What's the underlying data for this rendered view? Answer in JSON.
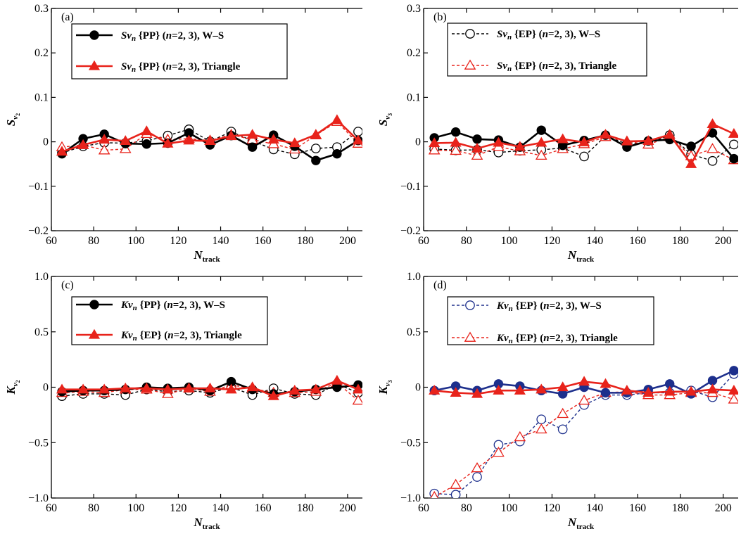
{
  "chart_data": [
    {
      "type": "line",
      "panel_label": "(a)",
      "ylabel": "S",
      "ylabel_sub": "v",
      "ylabel_subsub": "2",
      "xlabel": "N",
      "xlabel_sub": "track",
      "xlim": [
        60,
        207
      ],
      "ylim": [
        -0.2,
        0.3
      ],
      "xticks": [
        60,
        80,
        100,
        120,
        140,
        160,
        180,
        200
      ],
      "yticks": [
        -0.2,
        -0.1,
        0,
        0.1,
        0.2,
        0.3
      ],
      "ytick_labels": [
        "−0.2",
        "−0.1",
        "0",
        "0.1",
        "0.2",
        "0.3"
      ],
      "legend": {
        "position": "top-left",
        "entries": [
          {
            "prefix": "Sv",
            "sub": "n",
            "mid": " {PP} (",
            "n": "n",
            "rest": "=2, 3), W–S"
          },
          {
            "prefix": "Sv",
            "sub": "n",
            "mid": " {PP} (",
            "n": "n",
            "rest": "=2, 3), Triangle"
          }
        ]
      },
      "series": [
        {
          "name": "Sv_n {PP} (n=2, 3), W–S",
          "style": "solid",
          "marker": "filled-circle",
          "color": "#000000",
          "x": [
            65,
            75,
            85,
            95,
            105,
            115,
            125,
            135,
            145,
            155,
            165,
            175,
            185,
            195,
            205
          ],
          "y": [
            -0.027,
            0.007,
            0.017,
            -0.004,
            -0.005,
            -0.003,
            0.02,
            -0.007,
            0.014,
            -0.012,
            0.015,
            -0.01,
            -0.042,
            -0.027,
            0.003
          ]
        },
        {
          "name": "Sv_n {PP} (n=2, 3), Triangle",
          "style": "solid",
          "marker": "filled-triangle",
          "color": "#e8231b",
          "x": [
            65,
            75,
            85,
            95,
            105,
            115,
            125,
            135,
            145,
            155,
            165,
            175,
            185,
            195,
            205
          ],
          "y": [
            -0.022,
            -0.007,
            0.005,
            0.002,
            0.024,
            -0.004,
            0.003,
            0.002,
            0.013,
            0.016,
            0.005,
            -0.003,
            0.016,
            0.049,
            0.003
          ]
        },
        {
          "name": "open-circle W–S",
          "style": "dashed",
          "marker": "open-circle",
          "color": "#000000",
          "x": [
            65,
            75,
            85,
            95,
            105,
            115,
            125,
            135,
            145,
            155,
            165,
            175,
            185,
            195,
            205
          ],
          "y": [
            -0.025,
            -0.01,
            -0.002,
            -0.003,
            0.002,
            0.014,
            0.028,
            0.001,
            0.023,
            0.002,
            -0.017,
            -0.028,
            -0.015,
            -0.012,
            0.023
          ]
        },
        {
          "name": "open-triangle Triangle",
          "style": "dashed",
          "marker": "open-triangle",
          "color": "#e8231b",
          "x": [
            65,
            75,
            85,
            95,
            105,
            115,
            125,
            135,
            145,
            155,
            165,
            175,
            185,
            195,
            205
          ],
          "y": [
            -0.012,
            -0.007,
            -0.019,
            -0.016,
            0.018,
            0.005,
            0.007,
            0.003,
            0.016,
            0.005,
            -0.005,
            -0.017,
            0.015,
            0.045,
            -0.004
          ]
        }
      ]
    },
    {
      "type": "line",
      "panel_label": "(b)",
      "ylabel": "S",
      "ylabel_sub": "v",
      "ylabel_subsub": "3",
      "xlabel": "N",
      "xlabel_sub": "track",
      "xlim": [
        60,
        207
      ],
      "ylim": [
        -0.2,
        0.3
      ],
      "xticks": [
        60,
        80,
        100,
        120,
        140,
        160,
        180,
        200
      ],
      "yticks": [
        -0.2,
        -0.1,
        0,
        0.1,
        0.2,
        0.3
      ],
      "ytick_labels": [
        "−0.2",
        "−0.1",
        "0",
        "0.1",
        "0.2",
        "0.3"
      ],
      "legend": {
        "position": "top-left",
        "entries": [
          {
            "prefix": "Sv",
            "sub": "n",
            "mid": " {EP} (",
            "n": "n",
            "rest": "=2, 3), W–S"
          },
          {
            "prefix": "Sv",
            "sub": "n",
            "mid": " {EP} (",
            "n": "n",
            "rest": "=2, 3), Triangle"
          }
        ]
      },
      "series": [
        {
          "name": "solid black",
          "style": "solid",
          "marker": "filled-circle",
          "color": "#000000",
          "x": [
            65,
            75,
            85,
            95,
            105,
            115,
            125,
            135,
            145,
            155,
            165,
            175,
            185,
            195,
            205
          ],
          "y": [
            0.009,
            0.022,
            0.006,
            0.004,
            -0.012,
            0.026,
            -0.008,
            0.003,
            0.015,
            -0.012,
            0.002,
            0.005,
            -0.01,
            0.02,
            -0.038
          ]
        },
        {
          "name": "solid red",
          "style": "solid",
          "marker": "filled-triangle",
          "color": "#e8231b",
          "x": [
            65,
            75,
            85,
            95,
            105,
            115,
            125,
            135,
            145,
            155,
            165,
            175,
            185,
            195,
            205
          ],
          "y": [
            -0.003,
            -0.002,
            -0.015,
            -0.002,
            -0.011,
            -0.002,
            0.006,
            -0.001,
            0.016,
            0.001,
            0.002,
            0.016,
            -0.05,
            0.04,
            0.018
          ]
        },
        {
          "name": "Sv_n {EP} (n=2, 3), W–S",
          "style": "dashed",
          "marker": "open-circle",
          "color": "#000000",
          "x": [
            65,
            75,
            85,
            95,
            105,
            115,
            125,
            135,
            145,
            155,
            165,
            175,
            185,
            195,
            205
          ],
          "y": [
            -0.016,
            -0.019,
            -0.018,
            -0.024,
            -0.02,
            -0.018,
            -0.014,
            -0.033,
            0.013,
            -0.005,
            -0.003,
            0.015,
            -0.028,
            -0.043,
            -0.006
          ]
        },
        {
          "name": "Sv_n {EP} (n=2, 3), Triangle",
          "style": "dashed",
          "marker": "open-triangle",
          "color": "#e8231b",
          "x": [
            65,
            75,
            85,
            95,
            105,
            115,
            125,
            135,
            145,
            155,
            165,
            175,
            185,
            195,
            205
          ],
          "y": [
            -0.019,
            -0.02,
            -0.031,
            -0.011,
            -0.021,
            -0.031,
            -0.016,
            -0.005,
            0.011,
            0.001,
            -0.006,
            0.011,
            -0.032,
            -0.016,
            -0.041
          ]
        }
      ]
    },
    {
      "type": "line",
      "panel_label": "(c)",
      "ylabel": "K",
      "ylabel_sub": "v",
      "ylabel_subsub": "2",
      "xlabel": "N",
      "xlabel_sub": "track",
      "xlim": [
        60,
        207
      ],
      "ylim": [
        -1.0,
        1.0
      ],
      "xticks": [
        60,
        80,
        100,
        120,
        140,
        160,
        180,
        200
      ],
      "yticks": [
        -1.0,
        -0.5,
        0,
        0.5,
        1.0
      ],
      "ytick_labels": [
        "−1.0",
        "−0.5",
        "0",
        "0.5",
        "1.0"
      ],
      "legend": {
        "position": "top-left",
        "entries": [
          {
            "prefix": "Kv",
            "sub": "n",
            "mid": " {PP} (",
            "n": "n",
            "rest": "=2, 3), W–S"
          },
          {
            "prefix": "Kv",
            "sub": "n",
            "mid": " {EP} (",
            "n": "n",
            "rest": "=2, 3), Triangle"
          }
        ]
      },
      "series": [
        {
          "name": "Kv_n {PP} (n=2, 3), W–S",
          "style": "solid",
          "marker": "filled-circle",
          "color": "#000000",
          "x": [
            65,
            75,
            85,
            95,
            105,
            115,
            125,
            135,
            145,
            155,
            165,
            175,
            185,
            195,
            205
          ],
          "y": [
            -0.04,
            -0.03,
            -0.03,
            -0.02,
            0.0,
            -0.01,
            0.0,
            -0.03,
            0.05,
            -0.02,
            -0.06,
            -0.04,
            -0.02,
            0.0,
            0.02
          ]
        },
        {
          "name": "Kv_n {EP} (n=2, 3), Triangle",
          "style": "solid",
          "marker": "filled-triangle",
          "color": "#e8231b",
          "x": [
            65,
            75,
            85,
            95,
            105,
            115,
            125,
            135,
            145,
            155,
            165,
            175,
            185,
            195,
            205
          ],
          "y": [
            -0.02,
            -0.02,
            -0.02,
            -0.01,
            -0.01,
            -0.02,
            -0.01,
            -0.01,
            -0.02,
            0.0,
            -0.08,
            -0.03,
            -0.02,
            0.06,
            -0.02
          ]
        },
        {
          "name": "open-circle",
          "style": "dashed",
          "marker": "open-circle",
          "color": "#000000",
          "x": [
            65,
            75,
            85,
            95,
            105,
            115,
            125,
            135,
            145,
            155,
            165,
            175,
            185,
            195,
            205
          ],
          "y": [
            -0.08,
            -0.06,
            -0.06,
            -0.07,
            -0.02,
            -0.04,
            -0.03,
            -0.05,
            0.0,
            -0.07,
            -0.01,
            -0.06,
            -0.07,
            0.03,
            -0.05
          ]
        },
        {
          "name": "open-triangle",
          "style": "dashed",
          "marker": "open-triangle",
          "color": "#e8231b",
          "x": [
            65,
            75,
            85,
            95,
            105,
            115,
            125,
            135,
            145,
            155,
            165,
            175,
            185,
            195,
            205
          ],
          "y": [
            -0.05,
            -0.04,
            -0.05,
            -0.02,
            -0.02,
            -0.06,
            -0.01,
            -0.04,
            0.02,
            -0.01,
            -0.05,
            -0.05,
            -0.04,
            0.04,
            -0.12
          ]
        }
      ]
    },
    {
      "type": "line",
      "panel_label": "(d)",
      "ylabel": "K",
      "ylabel_sub": "v",
      "ylabel_subsub": "3",
      "xlabel": "N",
      "xlabel_sub": "track",
      "xlim": [
        60,
        207
      ],
      "ylim": [
        -1.0,
        1.0
      ],
      "xticks": [
        60,
        80,
        100,
        120,
        140,
        160,
        180,
        200
      ],
      "yticks": [
        -1.0,
        -0.5,
        0,
        0.5,
        1.0
      ],
      "ytick_labels": [
        "−1.0",
        "−0.5",
        "0",
        "0.5",
        "1.0"
      ],
      "legend": {
        "position": "top-left",
        "entries": [
          {
            "prefix": "Kv",
            "sub": "n",
            "mid": " {EP} (",
            "n": "n",
            "rest": "=2, 3), W–S"
          },
          {
            "prefix": "Kv",
            "sub": "n",
            "mid": " {EP} (",
            "n": "n",
            "rest": "=2, 3), Triangle"
          }
        ]
      },
      "series": [
        {
          "name": "solid navy",
          "style": "solid",
          "marker": "filled-circle",
          "color": "#1d2f8c",
          "x": [
            65,
            75,
            85,
            95,
            105,
            115,
            125,
            135,
            145,
            155,
            165,
            175,
            185,
            195,
            205
          ],
          "y": [
            -0.03,
            0.01,
            -0.03,
            0.03,
            0.01,
            -0.03,
            -0.06,
            0.0,
            -0.05,
            -0.05,
            -0.02,
            0.03,
            -0.06,
            0.06,
            0.15
          ]
        },
        {
          "name": "solid red",
          "style": "solid",
          "marker": "filled-triangle",
          "color": "#e8231b",
          "x": [
            65,
            75,
            85,
            95,
            105,
            115,
            125,
            135,
            145,
            155,
            165,
            175,
            185,
            195,
            205
          ],
          "y": [
            -0.03,
            -0.05,
            -0.06,
            -0.03,
            -0.03,
            -0.02,
            0.0,
            0.05,
            0.03,
            -0.03,
            -0.05,
            -0.04,
            -0.04,
            -0.02,
            -0.03
          ]
        },
        {
          "name": "Kv_n {EP} (n=2, 3), W–S",
          "style": "dashed",
          "marker": "open-circle",
          "color": "#1d2f8c",
          "x": [
            65,
            75,
            85,
            95,
            105,
            115,
            125,
            135,
            145,
            155,
            165,
            175,
            185,
            195,
            205
          ],
          "y": [
            -0.96,
            -0.97,
            -0.81,
            -0.52,
            -0.49,
            -0.29,
            -0.38,
            -0.16,
            -0.07,
            -0.07,
            -0.05,
            -0.05,
            -0.03,
            -0.09,
            0.12
          ]
        },
        {
          "name": "Kv_n {EP} (n=2, 3), Triangle",
          "style": "dashed",
          "marker": "open-triangle",
          "color": "#e8231b",
          "x": [
            65,
            75,
            85,
            95,
            105,
            115,
            125,
            135,
            145,
            155,
            165,
            175,
            185,
            195,
            205
          ],
          "y": [
            -0.99,
            -0.88,
            -0.73,
            -0.59,
            -0.45,
            -0.38,
            -0.24,
            -0.12,
            -0.05,
            -0.04,
            -0.07,
            -0.07,
            -0.05,
            -0.05,
            -0.11
          ]
        }
      ]
    }
  ]
}
